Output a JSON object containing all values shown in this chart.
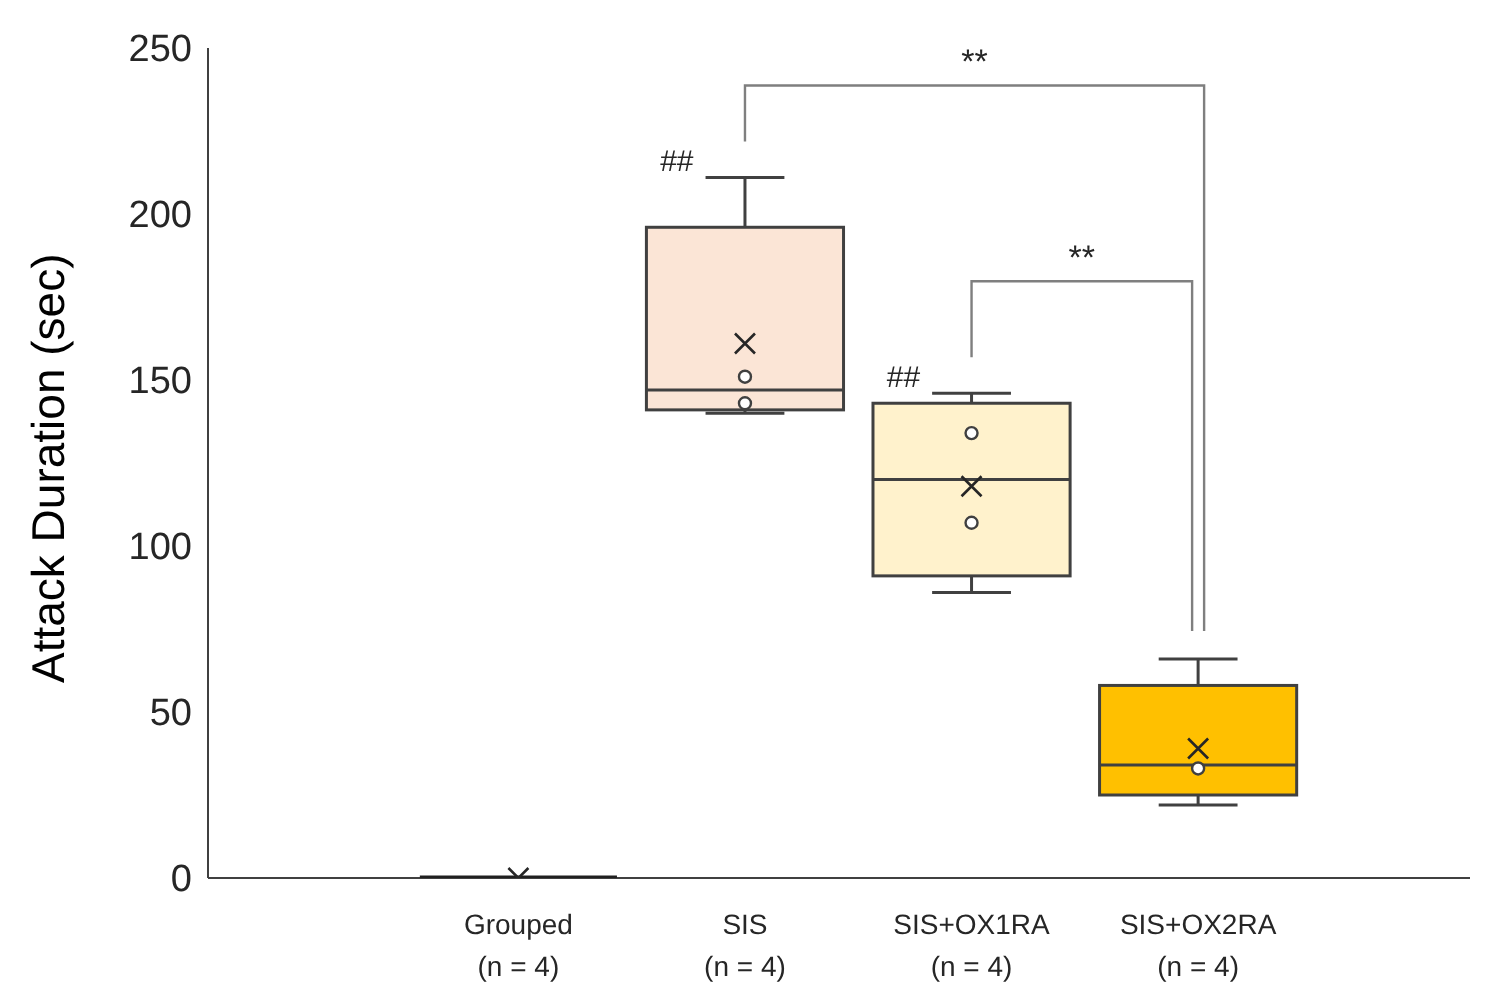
{
  "chart_data": {
    "type": "box",
    "ylabel": "Attack Duration (sec)",
    "categories": [
      "Grouped (n = 4)",
      "SIS (n = 4)",
      "SIS+OX1RA (n = 4)",
      "SIS+OX2RA (n = 4)"
    ],
    "colors": [
      "#404040",
      "#fbe5d6",
      "#fff2cc",
      "#ffc000"
    ],
    "boxes": [
      {
        "low": 0,
        "q1": 0,
        "median": 0,
        "q3": 0,
        "high": 0,
        "mean": 0
      },
      {
        "low": 140,
        "q1": 141,
        "median": 147,
        "q3": 196,
        "high": 211,
        "mean": 161
      },
      {
        "low": 86,
        "q1": 91,
        "median": 120,
        "q3": 143,
        "high": 146,
        "mean": 118
      },
      {
        "low": 22,
        "q1": 25,
        "median": 34,
        "q3": 58,
        "high": 66,
        "mean": 39
      }
    ],
    "series": [
      {
        "type": "scatter",
        "color": "#404040",
        "x": [
          "SIS (n = 4)",
          "SIS (n = 4)",
          "SIS+OX1RA (n = 4)",
          "SIS+OX1RA (n = 4)",
          "SIS+OX2RA (n = 4)"
        ],
        "values": [
          151,
          143,
          134,
          107,
          33
        ],
        "marker": "circle"
      }
    ],
    "legend": false,
    "ylim": [
      0,
      250
    ],
    "yticks": [
      0,
      50,
      100,
      150,
      200,
      250
    ],
    "annotations": [
      "**",
      "**",
      {
        "text": "##",
        "x": "SIS (n = 4)",
        "y": 211
      },
      {
        "text": "##",
        "x": "SIS+OX1RA (n = 4)",
        "y": 146
      }
    ]
  }
}
